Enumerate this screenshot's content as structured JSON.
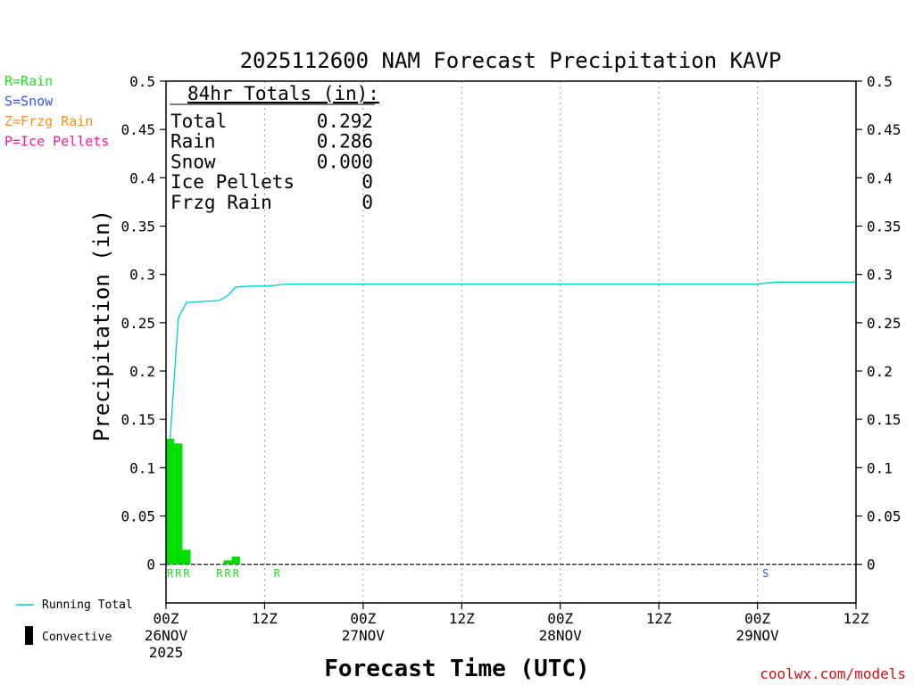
{
  "chart_data": {
    "type": "bar",
    "title": "2025112600 NAM Forecast Precipitation KAVP",
    "xlabel": "Forecast Time (UTC)",
    "ylabel": "Precipitation (in)",
    "credit": "coolwx.com/models",
    "xlim_hours": [
      0,
      84
    ],
    "ylim": [
      -0.04,
      0.5
    ],
    "y_ticks": [
      "0",
      "0.05",
      "0.1",
      "0.15",
      "0.2",
      "0.25",
      "0.3",
      "0.35",
      "0.4",
      "0.45",
      "0.5"
    ],
    "x_ticks": [
      {
        "hour": 0,
        "line1": "00Z",
        "line2": "26NOV",
        "line3": "2025"
      },
      {
        "hour": 12,
        "line1": "12Z",
        "line2": "",
        "line3": ""
      },
      {
        "hour": 24,
        "line1": "00Z",
        "line2": "27NOV",
        "line3": ""
      },
      {
        "hour": 36,
        "line1": "12Z",
        "line2": "",
        "line3": ""
      },
      {
        "hour": 48,
        "line1": "00Z",
        "line2": "28NOV",
        "line3": ""
      },
      {
        "hour": 60,
        "line1": "12Z",
        "line2": "",
        "line3": ""
      },
      {
        "hour": 72,
        "line1": "00Z",
        "line2": "29NOV",
        "line3": ""
      },
      {
        "hour": 84,
        "line1": "12Z",
        "line2": "",
        "line3": ""
      }
    ],
    "grid": "dotted vertical at 12h intervals",
    "ptype_legend": [
      {
        "label": "R=Rain",
        "color": "#22dd22"
      },
      {
        "label": "S=Snow",
        "color": "#3355ff"
      },
      {
        "label": "Z=Frzg Rain",
        "color": "#ff8c1a"
      },
      {
        "label": "P=Ice Pellets",
        "color": "#ff1493"
      }
    ],
    "bottom_legend": {
      "running_total": "Running Total",
      "convective": "Convective"
    },
    "totals_box": {
      "header": "84hr Totals (in):",
      "rows": [
        {
          "label": "Total",
          "value": "0.292"
        },
        {
          "label": "Rain",
          "value": "0.286"
        },
        {
          "label": "Snow",
          "value": "0.000"
        },
        {
          "label": "Ice Pellets",
          "value": "0"
        },
        {
          "label": "Frzg Rain",
          "value": "0"
        }
      ]
    },
    "bar_width_hours": 1,
    "series": [
      {
        "name": "Rain",
        "color": "#00dd00",
        "bars": [
          {
            "hour": 0,
            "value": 0.13
          },
          {
            "hour": 1,
            "value": 0.125
          },
          {
            "hour": 2,
            "value": 0.015
          },
          {
            "hour": 7,
            "value": 0.004
          },
          {
            "hour": 8,
            "value": 0.008
          }
        ]
      },
      {
        "name": "Running Total",
        "color": "#00c8c8",
        "points": [
          [
            0.5,
            0.13
          ],
          [
            1.5,
            0.255
          ],
          [
            2.5,
            0.271
          ],
          [
            6.5,
            0.273
          ],
          [
            7.5,
            0.278
          ],
          [
            8.5,
            0.287
          ],
          [
            10.5,
            0.288
          ],
          [
            12.5,
            0.288
          ],
          [
            14.5,
            0.29
          ],
          [
            72,
            0.29
          ],
          [
            73,
            0.291
          ],
          [
            74.5,
            0.292
          ],
          [
            84,
            0.292
          ]
        ]
      }
    ],
    "ptype_markers": [
      {
        "hour": 0.5,
        "text": "R",
        "color": "#22dd22"
      },
      {
        "hour": 1.5,
        "text": "R",
        "color": "#22dd22"
      },
      {
        "hour": 2.5,
        "text": "R",
        "color": "#22dd22"
      },
      {
        "hour": 6.5,
        "text": "R",
        "color": "#22dd22"
      },
      {
        "hour": 7.5,
        "text": "R",
        "color": "#22dd22"
      },
      {
        "hour": 8.5,
        "text": "R",
        "color": "#22dd22"
      },
      {
        "hour": 13.5,
        "text": "R",
        "color": "#22dd22"
      },
      {
        "hour": 73,
        "text": "S",
        "color": "#3355ff"
      }
    ]
  }
}
